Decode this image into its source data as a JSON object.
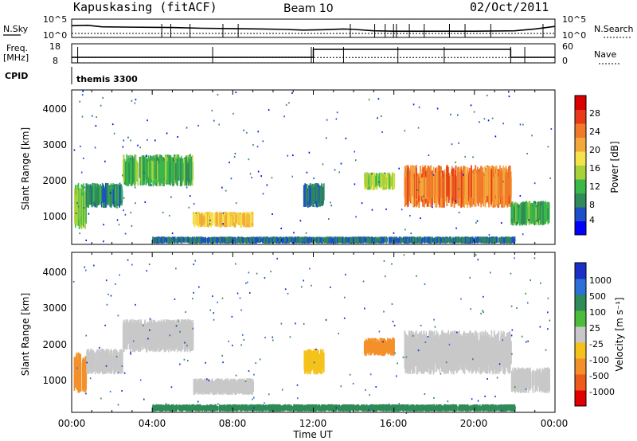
{
  "header": {
    "station": "Kapuskasing (fitACF)",
    "beam": "Beam 10",
    "date": "02/Oct/2011"
  },
  "noise_panel": {
    "left_label": "N.Sky",
    "right_label": "N.Search",
    "ticks_left": [
      "10^5",
      "10^0"
    ],
    "ticks_right": [
      "10^5",
      "10^0"
    ]
  },
  "freq_panel": {
    "left_label_1": "Freq.",
    "left_label_2": "[MHz]",
    "right_label": "Nave",
    "ticks_left": [
      "18",
      "8"
    ],
    "ticks_right": [
      "60",
      "0"
    ]
  },
  "cpid": {
    "label": "CPID",
    "value": "themis 3300"
  },
  "power_panel": {
    "ylabel": "Slant Range [km]",
    "yticks": [
      "4000",
      "3000",
      "2000",
      "1000"
    ],
    "colorbar_label": "Power [dB]",
    "colorbar_ticks": [
      "28",
      "24",
      "20",
      "16",
      "12",
      "8",
      "4"
    ],
    "colors": [
      "#0000ff",
      "#1e4fc8",
      "#2f8b57",
      "#3ab84a",
      "#a8d23a",
      "#f4e34a",
      "#f4a83a",
      "#f07a2a",
      "#e83a1a",
      "#d80000"
    ]
  },
  "velocity_panel": {
    "ylabel": "Slant Range [km]",
    "yticks": [
      "4000",
      "3000",
      "2000",
      "1000"
    ],
    "colorbar_label": "Velocity [m s⁻¹]",
    "colorbar_ticks": [
      "1000",
      "500",
      "100",
      "25",
      "-25",
      "-100",
      "-500",
      "-1000"
    ],
    "colors": [
      "#1a2fc8",
      "#2f6fd8",
      "#2f8b57",
      "#4cbc3a",
      "#c8c8c8",
      "#f4c21a",
      "#f4902a",
      "#ee5a1a",
      "#e00000"
    ]
  },
  "xaxis": {
    "label": "Time UT",
    "ticks": [
      "00:00",
      "04:00",
      "08:00",
      "12:00",
      "16:00",
      "20:00",
      "00:00"
    ]
  },
  "chart_data": [
    {
      "type": "line",
      "title": "N.Sky / N.Search",
      "x_hours": [
        0,
        0.8,
        1.5,
        3,
        5,
        6.5,
        8,
        9.5,
        10.5,
        11.5,
        12.5,
        13.5,
        14,
        15,
        16,
        18,
        20,
        22,
        23,
        24
      ],
      "sky_log": [
        3.2,
        3.3,
        2.9,
        2.8,
        2.7,
        2.5,
        2.4,
        2.3,
        2.2,
        2.0,
        2.1,
        2.3,
        2.2,
        1.8,
        1.7,
        1.7,
        1.7,
        1.8,
        2.3,
        3.0
      ],
      "search_log": 1.1,
      "ylim": [
        0,
        5
      ]
    },
    {
      "type": "line",
      "title": "Freq / Nave",
      "x_hours": [
        0,
        12.0,
        12.01,
        16.0,
        16.01,
        21.8,
        21.81,
        24
      ],
      "freq_mhz": [
        10.8,
        10.8,
        10.8,
        10.8,
        10.8,
        10.8,
        10.8,
        10.8
      ],
      "nave": [
        0,
        0,
        0,
        0,
        0,
        0,
        0,
        0
      ],
      "ylim_freq": [
        8,
        18
      ],
      "ylim_nave": [
        0,
        60
      ]
    },
    {
      "type": "heatmap",
      "title": "Power",
      "xlim_hours": [
        0,
        24
      ],
      "ylim_km": [
        180,
        4500
      ],
      "regions": [
        {
          "t": [
            0.1,
            0.7
          ],
          "r": [
            600,
            1900
          ],
          "p": 12
        },
        {
          "t": [
            0.7,
            2.5
          ],
          "r": [
            1200,
            1900
          ],
          "p": 8
        },
        {
          "t": [
            2.5,
            6.0
          ],
          "r": [
            1800,
            2700
          ],
          "p": 10
        },
        {
          "t": [
            6.0,
            9.0
          ],
          "r": [
            650,
            1100
          ],
          "p": 18
        },
        {
          "t": [
            11.5,
            12.5
          ],
          "r": [
            1200,
            1900
          ],
          "p": 6
        },
        {
          "t": [
            14.5,
            16.0
          ],
          "r": [
            1700,
            2200
          ],
          "p": 14
        },
        {
          "t": [
            16.5,
            21.8
          ],
          "r": [
            1200,
            2400
          ],
          "p": 22
        },
        {
          "t": [
            21.8,
            23.7
          ],
          "r": [
            700,
            1400
          ],
          "p": 10
        },
        {
          "t": [
            4.0,
            22.0
          ],
          "r": [
            200,
            400
          ],
          "p": 6
        }
      ]
    },
    {
      "type": "heatmap",
      "title": "Velocity",
      "xlim_hours": [
        0,
        24
      ],
      "ylim_km": [
        180,
        4500
      ],
      "regions": [
        {
          "t": [
            0.1,
            0.7
          ],
          "r": [
            700,
            1800
          ],
          "v": -400
        },
        {
          "t": [
            0.7,
            2.5
          ],
          "r": [
            1200,
            1900
          ],
          "v": 0
        },
        {
          "t": [
            2.5,
            6.0
          ],
          "r": [
            1800,
            2700
          ],
          "v": 0
        },
        {
          "t": [
            6.0,
            9.0
          ],
          "r": [
            650,
            1100
          ],
          "v": 0
        },
        {
          "t": [
            11.5,
            12.5
          ],
          "r": [
            1200,
            1900
          ],
          "v": -80
        },
        {
          "t": [
            14.5,
            16.0
          ],
          "r": [
            1700,
            2200
          ],
          "v": -400
        },
        {
          "t": [
            16.5,
            21.8
          ],
          "r": [
            1200,
            2400
          ],
          "v": 0
        },
        {
          "t": [
            21.8,
            23.7
          ],
          "r": [
            700,
            1400
          ],
          "v": 0
        },
        {
          "t": [
            4.0,
            22.0
          ],
          "r": [
            200,
            400
          ],
          "v": 60
        }
      ]
    }
  ]
}
